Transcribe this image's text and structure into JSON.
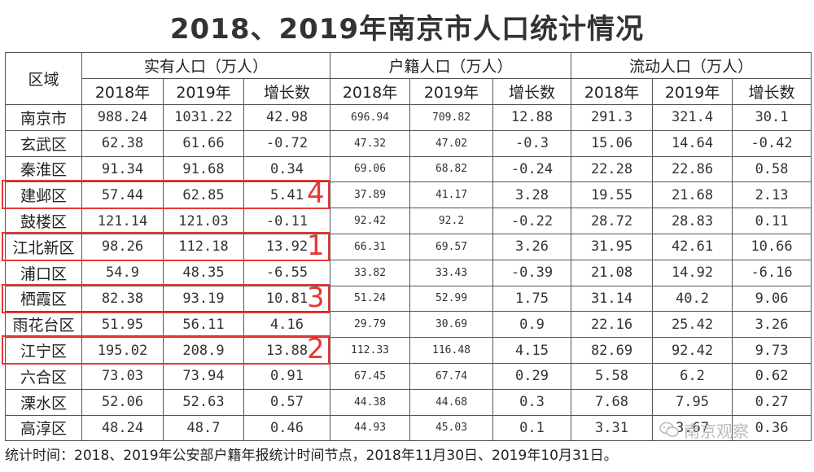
{
  "title": "2018、2019年南京市人口统计情况",
  "headers": {
    "region": "区域",
    "groups": [
      "实有人口（万人）",
      "户籍人口（万人）",
      "流动人口（万人）"
    ],
    "sub": [
      "2018年",
      "2019年",
      "增长数"
    ]
  },
  "rows": [
    {
      "region": "南京市",
      "values": [
        "988.24",
        "1031.22",
        "42.98",
        "696.94",
        "709.82",
        "12.88",
        "291.3",
        "321.4",
        "30.1"
      ]
    },
    {
      "region": "玄武区",
      "values": [
        "62.38",
        "61.66",
        "-0.72",
        "47.32",
        "47.02",
        "-0.3",
        "15.06",
        "14.64",
        "-0.42"
      ]
    },
    {
      "region": "秦淮区",
      "values": [
        "91.34",
        "91.68",
        "0.34",
        "69.06",
        "68.82",
        "-0.24",
        "22.28",
        "22.86",
        "0.58"
      ]
    },
    {
      "region": "建邺区",
      "values": [
        "57.44",
        "62.85",
        "5.41",
        "37.89",
        "41.17",
        "3.28",
        "19.55",
        "21.68",
        "2.13"
      ]
    },
    {
      "region": "鼓楼区",
      "values": [
        "121.14",
        "121.03",
        "-0.11",
        "92.42",
        "92.2",
        "-0.22",
        "28.72",
        "28.83",
        "0.11"
      ]
    },
    {
      "region": "江北新区",
      "values": [
        "98.26",
        "112.18",
        "13.92",
        "66.31",
        "69.57",
        "3.26",
        "31.95",
        "42.61",
        "10.66"
      ]
    },
    {
      "region": "浦口区",
      "values": [
        "54.9",
        "48.35",
        "-6.55",
        "33.82",
        "33.43",
        "-0.39",
        "21.08",
        "14.92",
        "-6.16"
      ]
    },
    {
      "region": "栖霞区",
      "values": [
        "82.38",
        "93.19",
        "10.81",
        "51.24",
        "52.99",
        "1.75",
        "31.14",
        "40.2",
        "9.06"
      ]
    },
    {
      "region": "雨花台区",
      "values": [
        "51.95",
        "56.11",
        "4.16",
        "29.79",
        "30.69",
        "0.9",
        "22.16",
        "25.42",
        "3.26"
      ]
    },
    {
      "region": "江宁区",
      "values": [
        "195.02",
        "208.9",
        "13.88",
        "112.33",
        "116.48",
        "4.15",
        "82.69",
        "92.42",
        "9.73"
      ]
    },
    {
      "region": "六合区",
      "values": [
        "73.03",
        "73.94",
        "0.91",
        "67.45",
        "67.74",
        "0.29",
        "5.58",
        "6.2",
        "0.62"
      ]
    },
    {
      "region": "溧水区",
      "values": [
        "52.06",
        "52.63",
        "0.57",
        "44.38",
        "44.68",
        "0.3",
        "7.68",
        "7.95",
        "0.27"
      ]
    },
    {
      "region": "高淳区",
      "values": [
        "48.24",
        "48.7",
        "0.46",
        "44.93",
        "45.03",
        "0.1",
        "3.31",
        "3.67",
        "0.36"
      ]
    }
  ],
  "highlights": [
    {
      "region": "建邺区",
      "rank": "4"
    },
    {
      "region": "江北新区",
      "rank": "1"
    },
    {
      "region": "栖霞区",
      "rank": "3"
    },
    {
      "region": "江宁区",
      "rank": "2"
    }
  ],
  "footnote": "统计时间：2018、2019年公安部户籍年报统计时间节点，2018年11月30日、2019年10月31日。",
  "watermark": "南京观察",
  "colors": {
    "highlight": "#e53935"
  }
}
